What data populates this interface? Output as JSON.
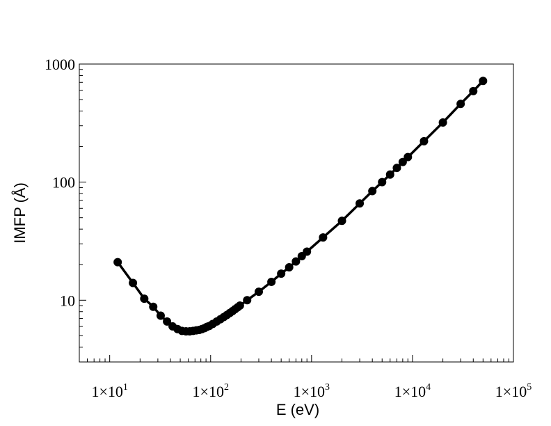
{
  "chart_data": {
    "type": "line",
    "xlabel": "E (eV)",
    "ylabel": "IMFP (Å)",
    "x_scale": "log",
    "y_scale": "log",
    "xlim": [
      5,
      100000
    ],
    "ylim": [
      3,
      1000
    ],
    "x_ticks": [
      {
        "value": 10,
        "mant": "1×10",
        "exp": "1"
      },
      {
        "value": 100,
        "mant": "1×10",
        "exp": "2"
      },
      {
        "value": 1000,
        "mant": "1×10",
        "exp": "3"
      },
      {
        "value": 10000,
        "mant": "1×10",
        "exp": "4"
      },
      {
        "value": 100000,
        "mant": "1×10",
        "exp": "5"
      }
    ],
    "y_ticks": [
      {
        "value": 10,
        "label": "10"
      },
      {
        "value": 100,
        "label": "100"
      },
      {
        "value": 1000,
        "label": "1000"
      }
    ],
    "grid": false,
    "series": [
      {
        "color": "#000000",
        "marker": "circle",
        "x": [
          12,
          17,
          22,
          27,
          32,
          37,
          42,
          47,
          52,
          57,
          62,
          67,
          72,
          77,
          82,
          87,
          92,
          97,
          105,
          115,
          125,
          135,
          145,
          155,
          165,
          175,
          185,
          195,
          230,
          300,
          400,
          500,
          600,
          700,
          800,
          900,
          1300,
          2000,
          3000,
          4000,
          5000,
          6000,
          7000,
          8000,
          9000,
          13000,
          20000,
          30000,
          40000,
          50000
        ],
        "y": [
          21,
          14,
          10.3,
          8.8,
          7.4,
          6.6,
          6.0,
          5.7,
          5.5,
          5.45,
          5.45,
          5.5,
          5.55,
          5.6,
          5.7,
          5.8,
          5.95,
          6.05,
          6.3,
          6.6,
          6.9,
          7.2,
          7.5,
          7.8,
          8.1,
          8.4,
          8.7,
          9.0,
          10.0,
          11.8,
          14.3,
          16.8,
          19.0,
          21.3,
          23.6,
          25.8,
          34,
          47,
          66,
          84,
          100,
          116,
          132,
          148,
          163,
          222,
          320,
          460,
          590,
          720
        ]
      }
    ]
  }
}
